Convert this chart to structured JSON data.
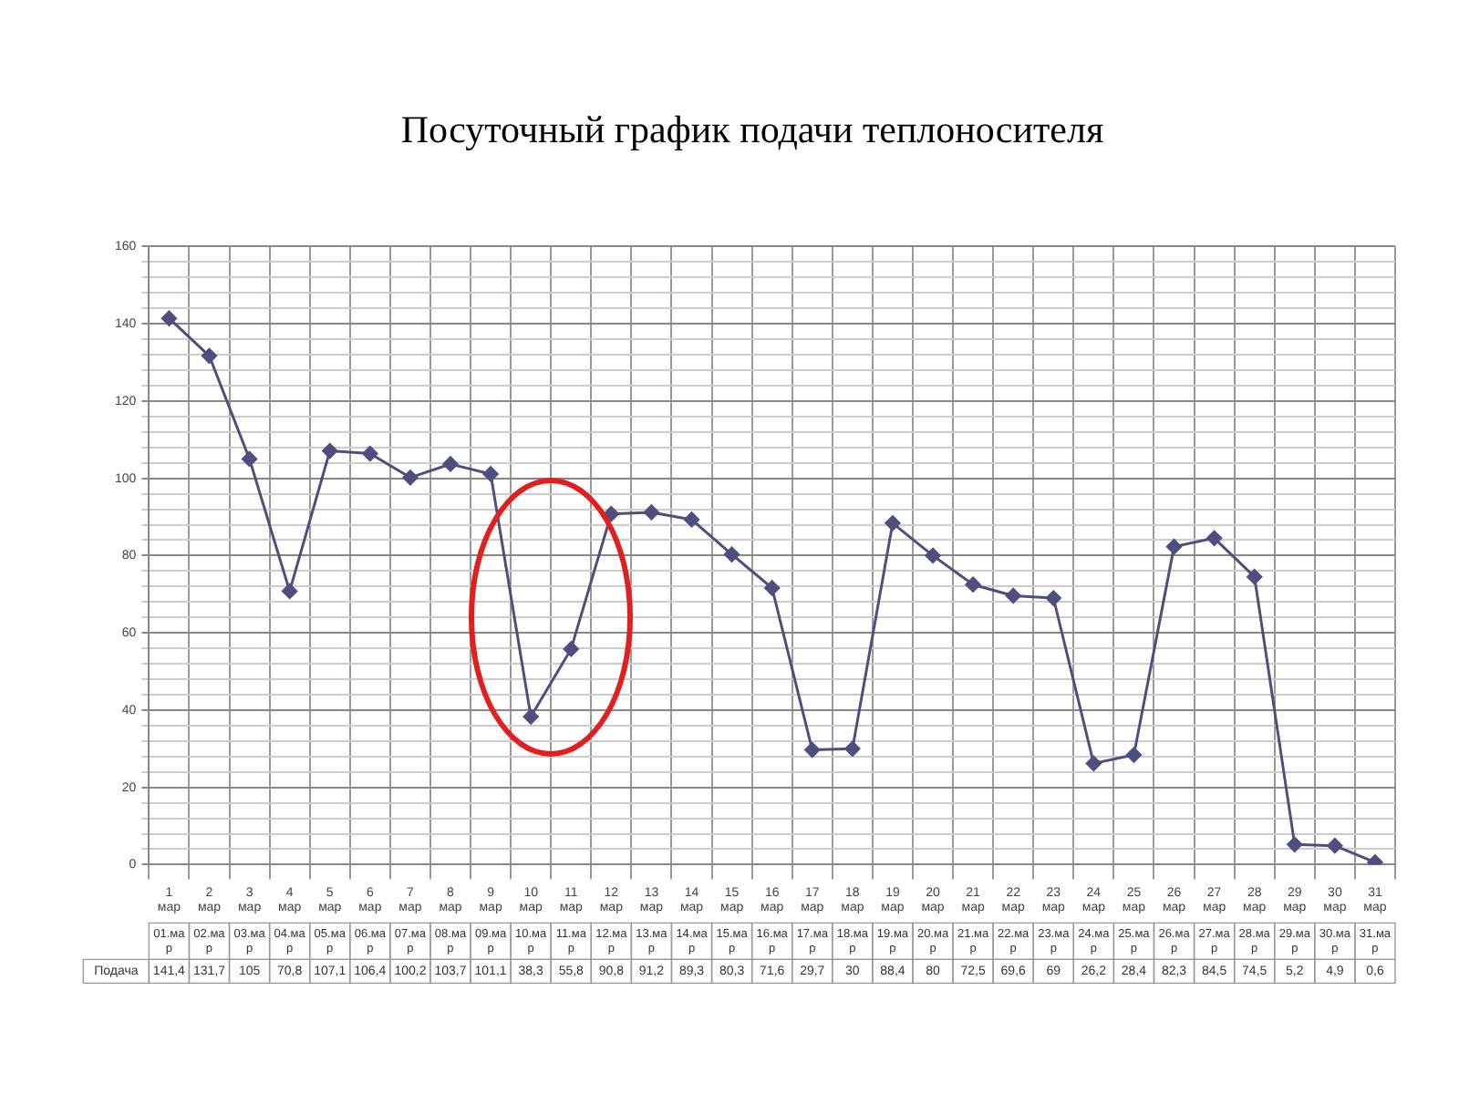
{
  "chart_data": {
    "type": "line",
    "title": "Посуточный график подачи теплоносителя",
    "categories": [
      "1 мар",
      "2 мар",
      "3 мар",
      "4 мар",
      "5 мар",
      "6 мар",
      "7 мар",
      "8 мар",
      "9 мар",
      "10 мар",
      "11 мар",
      "12 мар",
      "13 мар",
      "14 мар",
      "15 мар",
      "16 мар",
      "17 мар",
      "18 мар",
      "19 мар",
      "20 мар",
      "21 мар",
      "22 мар",
      "23 мар",
      "24 мар",
      "25 мар",
      "26 мар",
      "27 мар",
      "28 мар",
      "29 мар",
      "30 мар",
      "31 мар"
    ],
    "series": [
      {
        "name": "Подача",
        "color": "#4f4f7f",
        "values": [
          141.4,
          131.7,
          105,
          70.8,
          107.1,
          106.4,
          100.2,
          103.7,
          101.1,
          38.3,
          55.8,
          90.8,
          91.2,
          89.3,
          80.3,
          71.6,
          29.7,
          30,
          88.4,
          80,
          72.5,
          69.6,
          69,
          26.2,
          28.4,
          82.3,
          84.5,
          74.5,
          5.2,
          4.9,
          0.6
        ],
        "value_labels": [
          "141,4",
          "131,7",
          "105",
          "70,8",
          "107,1",
          "106,4",
          "100,2",
          "103,7",
          "101,1",
          "38,3",
          "55,8",
          "90,8",
          "91,2",
          "89,3",
          "80,3",
          "71,6",
          "29,7",
          "30",
          "88,4",
          "80",
          "72,5",
          "69,6",
          "69",
          "26,2",
          "28,4",
          "82,3",
          "84,5",
          "74,5",
          "5,2",
          "4,9",
          "0,6"
        ]
      }
    ],
    "annotations": [
      "01.мар",
      "02.мар",
      "03.мар",
      "04.мар",
      "05.мар",
      "06.мар",
      "07.мар",
      "08.мар",
      "09.мар",
      "10.мар",
      "11.мар",
      "12.мар",
      "13.мар",
      "14.мар",
      "15.мар",
      "16.мар",
      "17.мар",
      "18.мар",
      "19.мар",
      "20.мар",
      "21.мар",
      "22.мар",
      "23.мар",
      "24.мар",
      "25.мар",
      "26.мар",
      "27.мар",
      "28.мар",
      "29.мар",
      "30.мар",
      "31.мар"
    ],
    "ylim": [
      0,
      160
    ],
    "yticks": [
      0,
      {
        "value": 4,
        "label": null
      },
      {
        "value": 8,
        "label": null
      },
      {
        "value": 12,
        "label": null
      },
      {
        "value": 16,
        "label": null
      },
      20,
      {
        "value": 24,
        "label": null
      },
      {
        "value": 28,
        "label": null
      },
      {
        "value": 32,
        "label": null
      },
      {
        "value": 36,
        "label": null
      },
      40,
      {
        "value": 44,
        "label": null
      },
      {
        "value": 48,
        "label": null
      },
      {
        "value": 52,
        "label": null
      },
      {
        "value": 56,
        "label": null
      },
      60,
      {
        "value": 64,
        "label": null
      },
      {
        "value": 68,
        "label": null
      },
      {
        "value": 72,
        "label": null
      },
      {
        "value": 76,
        "label": null
      },
      80,
      {
        "value": 84,
        "label": null
      },
      {
        "value": 88,
        "label": null
      },
      {
        "value": 92,
        "label": null
      },
      {
        "value": 96,
        "label": null
      },
      100,
      {
        "value": 104,
        "label": null
      },
      {
        "value": 108,
        "label": null
      },
      {
        "value": 112,
        "label": null
      },
      {
        "value": 116,
        "label": null
      },
      120,
      {
        "value": 124,
        "label": null
      },
      {
        "value": 128,
        "label": null
      },
      {
        "value": 132,
        "label": null
      },
      {
        "value": 136,
        "label": null
      },
      140,
      {
        "value": 144,
        "label": null
      },
      {
        "value": 148,
        "label": null
      },
      {
        "value": 152,
        "label": null
      },
      {
        "value": 156,
        "label": null
      },
      160
    ],
    "grid": true,
    "legend": false,
    "marker": "diamond",
    "line_style": "solid"
  }
}
